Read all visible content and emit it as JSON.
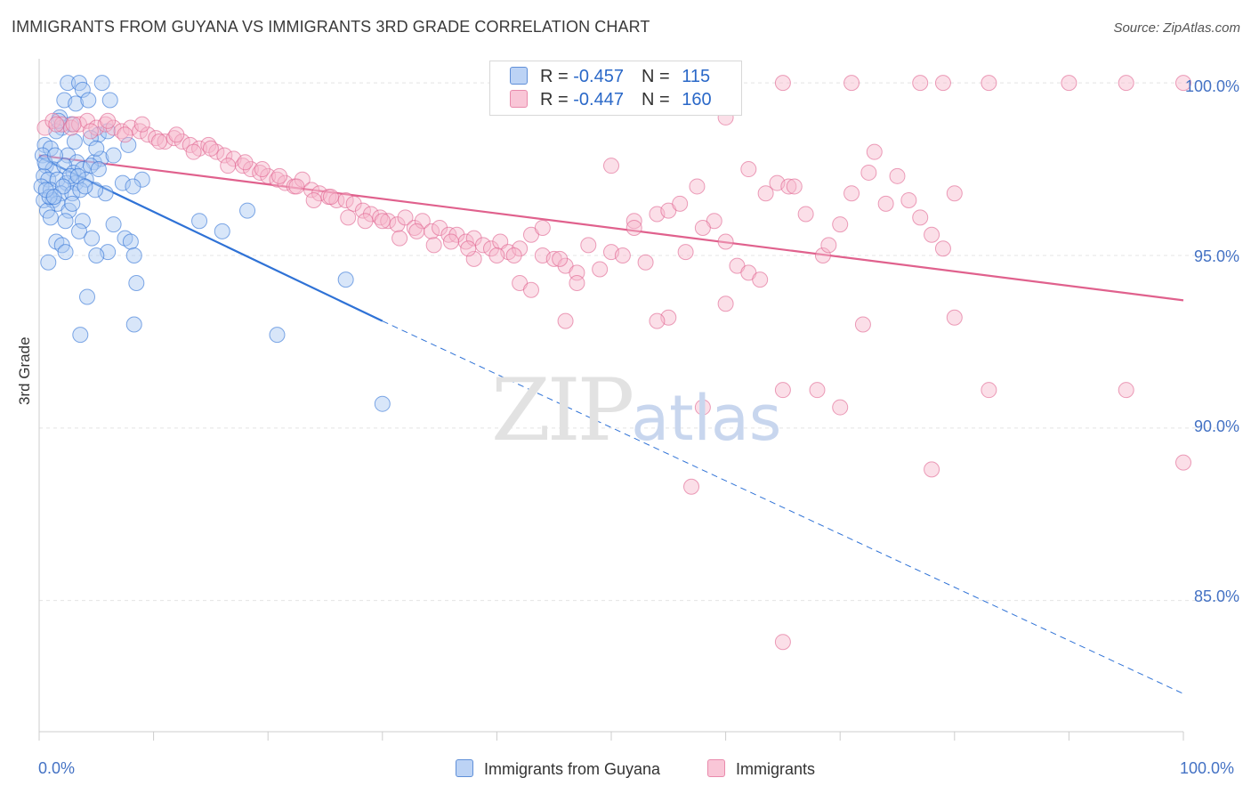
{
  "title": "IMMIGRANTS FROM GUYANA VS IMMIGRANTS 3RD GRADE CORRELATION CHART",
  "source": "Source: ZipAtlas.com",
  "watermark": {
    "zip": "ZIP",
    "atlas": "atlas"
  },
  "colors": {
    "blue": "#2f72d6",
    "blue_fill": "#a9c8f2",
    "pink": "#e0618d",
    "pink_fill": "#f7b8cd",
    "tick": "#4472c4"
  },
  "legend": {
    "rows": [
      {
        "r_label": "R = ",
        "r_value": "-0.457",
        "n_label": "N = ",
        "n_value": "115"
      },
      {
        "r_label": "R = ",
        "r_value": "-0.447",
        "n_label": "N = ",
        "n_value": "160"
      }
    ]
  },
  "chart_data": {
    "type": "scatter",
    "xlabel": "",
    "ylabel": "3rd Grade",
    "xlim": [
      0,
      100
    ],
    "ylim": [
      81.2,
      100.7
    ],
    "x_tick_labels": [
      "0.0%",
      "100.0%"
    ],
    "y_ticks": [
      {
        "value": 100,
        "label": "100.0%"
      },
      {
        "value": 95,
        "label": "95.0%"
      },
      {
        "value": 90,
        "label": "90.0%"
      },
      {
        "value": 85,
        "label": "85.0%"
      }
    ],
    "legend_position": "top-center",
    "grid": true,
    "series": [
      {
        "name": "Immigrants from Guyana",
        "color": "#2f72d6",
        "trend": {
          "x0": 0,
          "y0": 97.85,
          "x1": 30,
          "y1": 93.1,
          "dash_to": 100,
          "dash_y": 82.3
        },
        "points": [
          [
            2.5,
            100.0
          ],
          [
            3.5,
            100.0
          ],
          [
            5.5,
            100.0
          ],
          [
            3.8,
            99.8
          ],
          [
            2.2,
            99.5
          ],
          [
            3.2,
            99.4
          ],
          [
            6.2,
            99.5
          ],
          [
            4.3,
            99.5
          ],
          [
            1.8,
            99.0
          ],
          [
            2.8,
            98.8
          ],
          [
            2.0,
            98.7
          ],
          [
            1.5,
            98.6
          ],
          [
            5.2,
            98.5
          ],
          [
            0.5,
            98.2
          ],
          [
            1.0,
            98.1
          ],
          [
            4.5,
            98.4
          ],
          [
            7.8,
            98.2
          ],
          [
            0.3,
            97.9
          ],
          [
            2.5,
            97.9
          ],
          [
            3.3,
            97.7
          ],
          [
            4.8,
            97.7
          ],
          [
            5.4,
            97.8
          ],
          [
            6.5,
            97.9
          ],
          [
            0.6,
            97.6
          ],
          [
            1.2,
            97.5
          ],
          [
            2.2,
            97.6
          ],
          [
            3.0,
            97.4
          ],
          [
            3.8,
            97.5
          ],
          [
            4.5,
            97.6
          ],
          [
            5.2,
            97.5
          ],
          [
            0.4,
            97.3
          ],
          [
            0.8,
            97.2
          ],
          [
            1.6,
            97.2
          ],
          [
            2.4,
            97.1
          ],
          [
            3.2,
            97.1
          ],
          [
            4.1,
            97.2
          ],
          [
            9.0,
            97.2
          ],
          [
            7.3,
            97.1
          ],
          [
            8.2,
            97.0
          ],
          [
            0.2,
            97.0
          ],
          [
            1.0,
            96.9
          ],
          [
            1.9,
            96.8
          ],
          [
            2.9,
            96.8
          ],
          [
            3.6,
            96.9
          ],
          [
            5.8,
            96.8
          ],
          [
            0.4,
            96.6
          ],
          [
            1.2,
            96.6
          ],
          [
            1.6,
            96.5
          ],
          [
            0.7,
            96.3
          ],
          [
            2.6,
            96.3
          ],
          [
            18.2,
            96.3
          ],
          [
            1.0,
            96.1
          ],
          [
            2.3,
            96.0
          ],
          [
            3.8,
            96.0
          ],
          [
            14.0,
            96.0
          ],
          [
            6.5,
            95.9
          ],
          [
            3.5,
            95.7
          ],
          [
            4.6,
            95.5
          ],
          [
            1.5,
            95.4
          ],
          [
            2.0,
            95.3
          ],
          [
            7.5,
            95.5
          ],
          [
            8.0,
            95.4
          ],
          [
            16.0,
            95.7
          ],
          [
            2.3,
            95.1
          ],
          [
            6.0,
            95.1
          ],
          [
            5.0,
            95.0
          ],
          [
            8.3,
            95.0
          ],
          [
            0.8,
            94.8
          ],
          [
            26.8,
            94.3
          ],
          [
            8.5,
            94.2
          ],
          [
            4.2,
            93.8
          ],
          [
            8.3,
            93.0
          ],
          [
            3.6,
            92.7
          ],
          [
            20.8,
            92.7
          ],
          [
            30.0,
            90.7
          ],
          [
            0.5,
            97.7
          ],
          [
            1.4,
            97.9
          ],
          [
            2.7,
            97.3
          ],
          [
            4.9,
            96.9
          ],
          [
            0.9,
            96.7
          ],
          [
            3.1,
            98.3
          ],
          [
            1.7,
            98.9
          ],
          [
            6.0,
            98.6
          ],
          [
            5.0,
            98.1
          ],
          [
            0.6,
            96.9
          ],
          [
            2.1,
            97.0
          ],
          [
            3.4,
            97.3
          ],
          [
            1.3,
            96.7
          ],
          [
            4.0,
            97.0
          ],
          [
            2.9,
            96.5
          ]
        ]
      },
      {
        "name": "Immigrants",
        "color": "#e0618d",
        "trend": {
          "x0": 0,
          "y0": 97.9,
          "x1": 100,
          "y1": 93.7
        },
        "points": [
          [
            0.5,
            98.7
          ],
          [
            1.2,
            98.9
          ],
          [
            2.0,
            98.8
          ],
          [
            2.8,
            98.7
          ],
          [
            3.5,
            98.8
          ],
          [
            4.2,
            98.9
          ],
          [
            5.0,
            98.7
          ],
          [
            5.8,
            98.8
          ],
          [
            6.5,
            98.7
          ],
          [
            7.2,
            98.6
          ],
          [
            8.0,
            98.7
          ],
          [
            8.8,
            98.6
          ],
          [
            9.5,
            98.5
          ],
          [
            10.2,
            98.4
          ],
          [
            11.0,
            98.3
          ],
          [
            11.8,
            98.4
          ],
          [
            12.5,
            98.3
          ],
          [
            13.2,
            98.2
          ],
          [
            14.0,
            98.1
          ],
          [
            14.8,
            98.2
          ],
          [
            15.5,
            98.0
          ],
          [
            16.2,
            97.9
          ],
          [
            17.0,
            97.8
          ],
          [
            17.8,
            97.6
          ],
          [
            18.5,
            97.5
          ],
          [
            19.3,
            97.4
          ],
          [
            20.0,
            97.3
          ],
          [
            20.8,
            97.2
          ],
          [
            21.5,
            97.1
          ],
          [
            22.3,
            97.0
          ],
          [
            23.0,
            97.2
          ],
          [
            23.8,
            96.9
          ],
          [
            24.5,
            96.8
          ],
          [
            25.3,
            96.7
          ],
          [
            26.0,
            96.6
          ],
          [
            26.8,
            96.6
          ],
          [
            27.5,
            96.5
          ],
          [
            28.3,
            96.3
          ],
          [
            29.0,
            96.2
          ],
          [
            29.8,
            96.1
          ],
          [
            30.5,
            96.0
          ],
          [
            31.3,
            95.9
          ],
          [
            32.0,
            96.1
          ],
          [
            32.8,
            95.8
          ],
          [
            33.5,
            96.0
          ],
          [
            34.3,
            95.7
          ],
          [
            35.0,
            95.8
          ],
          [
            35.8,
            95.6
          ],
          [
            36.5,
            95.6
          ],
          [
            37.3,
            95.4
          ],
          [
            38.0,
            95.5
          ],
          [
            38.8,
            95.3
          ],
          [
            39.5,
            95.2
          ],
          [
            40.3,
            95.4
          ],
          [
            41.0,
            95.1
          ],
          [
            42.0,
            95.2
          ],
          [
            43.0,
            95.6
          ],
          [
            44.0,
            95.0
          ],
          [
            45.0,
            94.9
          ],
          [
            46.0,
            94.7
          ],
          [
            47.0,
            94.5
          ],
          [
            48.0,
            95.3
          ],
          [
            49.0,
            94.6
          ],
          [
            50.0,
            95.1
          ],
          [
            51.0,
            95.0
          ],
          [
            52.0,
            96.0
          ],
          [
            53.0,
            94.8
          ],
          [
            54.0,
            96.2
          ],
          [
            55.0,
            96.3
          ],
          [
            56.0,
            96.5
          ],
          [
            57.5,
            97.0
          ],
          [
            59.0,
            96.0
          ],
          [
            60.0,
            95.4
          ],
          [
            61.0,
            94.7
          ],
          [
            62.0,
            94.5
          ],
          [
            63.5,
            96.8
          ],
          [
            64.5,
            97.1
          ],
          [
            65.5,
            97.0
          ],
          [
            66.0,
            97.0
          ],
          [
            67.0,
            96.2
          ],
          [
            68.5,
            95.0
          ],
          [
            69.0,
            95.3
          ],
          [
            70.0,
            95.9
          ],
          [
            71.0,
            96.8
          ],
          [
            72.5,
            97.4
          ],
          [
            73.0,
            98.0
          ],
          [
            74.0,
            96.5
          ],
          [
            75.0,
            97.3
          ],
          [
            76.0,
            96.6
          ],
          [
            77.0,
            96.1
          ],
          [
            78.0,
            95.6
          ],
          [
            79.0,
            95.2
          ],
          [
            80.0,
            96.8
          ],
          [
            62.0,
            97.5
          ],
          [
            58.0,
            95.8
          ],
          [
            56.5,
            95.1
          ],
          [
            44.0,
            95.8
          ],
          [
            40.0,
            95.0
          ],
          [
            38.0,
            94.9
          ],
          [
            47.0,
            94.2
          ],
          [
            42.0,
            94.2
          ],
          [
            43.0,
            94.0
          ],
          [
            50.0,
            97.6
          ],
          [
            52.0,
            95.8
          ],
          [
            55.0,
            93.2
          ],
          [
            54.0,
            93.1
          ],
          [
            46.0,
            93.1
          ],
          [
            60.0,
            93.6
          ],
          [
            63.0,
            94.3
          ],
          [
            65.0,
            91.1
          ],
          [
            68.0,
            91.1
          ],
          [
            72.0,
            93.0
          ],
          [
            80.0,
            93.2
          ],
          [
            83.0,
            91.1
          ],
          [
            95.0,
            91.1
          ],
          [
            58.0,
            90.6
          ],
          [
            70.0,
            90.6
          ],
          [
            57.0,
            88.3
          ],
          [
            78.0,
            88.8
          ],
          [
            100.0,
            89.0
          ],
          [
            65.0,
            83.8
          ],
          [
            65.0,
            100.0
          ],
          [
            71.0,
            100.0
          ],
          [
            77.0,
            100.0
          ],
          [
            79.0,
            100.0
          ],
          [
            83.0,
            100.0
          ],
          [
            90.0,
            100.0
          ],
          [
            95.0,
            100.0
          ],
          [
            100.0,
            100.0
          ],
          [
            60.0,
            99.0
          ],
          [
            3.0,
            98.8
          ],
          [
            6.0,
            98.9
          ],
          [
            9.0,
            98.8
          ],
          [
            12.0,
            98.5
          ],
          [
            15.0,
            98.1
          ],
          [
            18.0,
            97.7
          ],
          [
            21.0,
            97.3
          ],
          [
            24.0,
            96.6
          ],
          [
            27.0,
            96.1
          ],
          [
            30.0,
            96.0
          ],
          [
            33.0,
            95.7
          ],
          [
            36.0,
            95.4
          ],
          [
            1.5,
            98.8
          ],
          [
            4.5,
            98.6
          ],
          [
            7.5,
            98.5
          ],
          [
            10.5,
            98.3
          ],
          [
            13.5,
            98.0
          ],
          [
            16.5,
            97.6
          ],
          [
            19.5,
            97.5
          ],
          [
            22.5,
            97.0
          ],
          [
            25.5,
            96.7
          ],
          [
            28.5,
            96.0
          ],
          [
            31.5,
            95.5
          ],
          [
            34.5,
            95.3
          ],
          [
            37.5,
            95.2
          ],
          [
            41.5,
            95.0
          ],
          [
            45.5,
            94.9
          ]
        ]
      }
    ]
  }
}
